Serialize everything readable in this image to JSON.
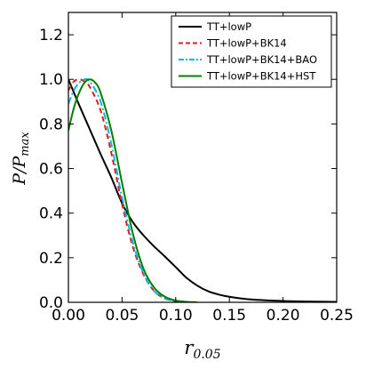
{
  "chart_data": {
    "type": "line",
    "title": "",
    "xlabel": "r",
    "xlabel_sub": "0.05",
    "ylabel": "P/P",
    "ylabel_sub": "max",
    "xlim": [
      0.0,
      0.25
    ],
    "ylim": [
      0.0,
      1.3
    ],
    "xticks": [
      0.0,
      0.05,
      0.1,
      0.15,
      0.2,
      0.25
    ],
    "xtick_labels": [
      "0.00",
      "0.05",
      "0.10",
      "0.15",
      "0.20",
      "0.25"
    ],
    "yticks": [
      0.0,
      0.2,
      0.4,
      0.6,
      0.8,
      1.0,
      1.2
    ],
    "ytick_labels": [
      "0.0",
      "0.2",
      "0.4",
      "0.6",
      "0.8",
      "1.0",
      "1.2"
    ],
    "grid": false,
    "legend_position": "top-right",
    "series": [
      {
        "name": "TT+lowP",
        "color": "#000000",
        "dash": "solid",
        "points": [
          [
            0.0,
            1.0
          ],
          [
            0.01,
            0.885
          ],
          [
            0.02,
            0.775
          ],
          [
            0.03,
            0.665
          ],
          [
            0.04,
            0.56
          ],
          [
            0.05,
            0.445
          ],
          [
            0.06,
            0.36
          ],
          [
            0.07,
            0.3
          ],
          [
            0.08,
            0.25
          ],
          [
            0.09,
            0.205
          ],
          [
            0.1,
            0.158
          ],
          [
            0.11,
            0.11
          ],
          [
            0.12,
            0.075
          ],
          [
            0.13,
            0.05
          ],
          [
            0.14,
            0.035
          ],
          [
            0.15,
            0.025
          ],
          [
            0.17,
            0.013
          ],
          [
            0.2,
            0.006
          ],
          [
            0.23,
            0.003
          ],
          [
            0.25,
            0.002
          ]
        ]
      },
      {
        "name": "TT+lowP+BK14",
        "color": "#e31a1c",
        "dash": "dashed",
        "points": [
          [
            0.0,
            0.95
          ],
          [
            0.005,
            0.99
          ],
          [
            0.01,
            1.0
          ],
          [
            0.015,
            0.99
          ],
          [
            0.02,
            0.965
          ],
          [
            0.03,
            0.86
          ],
          [
            0.04,
            0.67
          ],
          [
            0.05,
            0.44
          ],
          [
            0.06,
            0.25
          ],
          [
            0.07,
            0.125
          ],
          [
            0.08,
            0.05
          ],
          [
            0.09,
            0.017
          ],
          [
            0.1,
            0.005
          ],
          [
            0.11,
            0.0
          ]
        ]
      },
      {
        "name": "TT+lowP+BK14+BAO",
        "color": "#00b7eb",
        "dash": "dashdot",
        "points": [
          [
            0.0,
            0.89
          ],
          [
            0.005,
            0.95
          ],
          [
            0.01,
            0.985
          ],
          [
            0.015,
            1.0
          ],
          [
            0.02,
            0.99
          ],
          [
            0.03,
            0.9
          ],
          [
            0.04,
            0.71
          ],
          [
            0.05,
            0.47
          ],
          [
            0.06,
            0.27
          ],
          [
            0.07,
            0.13
          ],
          [
            0.08,
            0.05
          ],
          [
            0.09,
            0.018
          ],
          [
            0.1,
            0.005
          ],
          [
            0.11,
            0.0
          ]
        ]
      },
      {
        "name": "TT+lowP+BK14+HST",
        "color": "#008000",
        "dash": "solid",
        "points": [
          [
            0.0,
            0.77
          ],
          [
            0.005,
            0.87
          ],
          [
            0.01,
            0.94
          ],
          [
            0.015,
            0.985
          ],
          [
            0.02,
            1.0
          ],
          [
            0.025,
            0.985
          ],
          [
            0.03,
            0.94
          ],
          [
            0.04,
            0.77
          ],
          [
            0.05,
            0.535
          ],
          [
            0.06,
            0.31
          ],
          [
            0.07,
            0.15
          ],
          [
            0.08,
            0.065
          ],
          [
            0.09,
            0.025
          ],
          [
            0.1,
            0.008
          ],
          [
            0.11,
            0.002
          ],
          [
            0.12,
            0.0
          ]
        ]
      }
    ]
  }
}
